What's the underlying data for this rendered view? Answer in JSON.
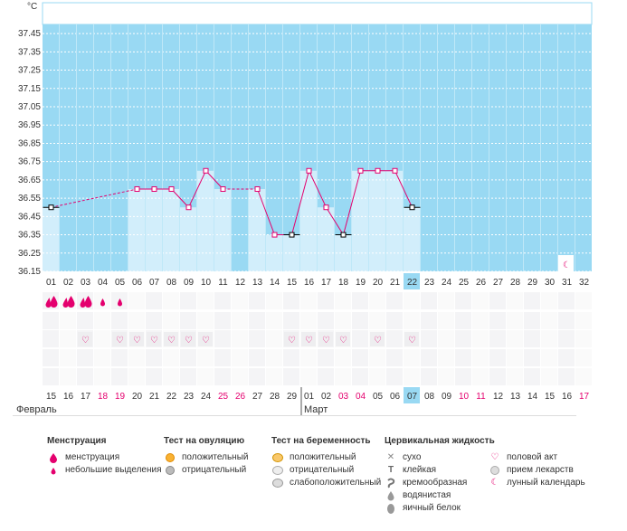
{
  "unit_label": "°C",
  "y_ticks": [
    "37.45",
    "37.35",
    "37.25",
    "37.15",
    "37.05",
    "36.95",
    "36.85",
    "36.75",
    "36.65",
    "36.55",
    "36.45",
    "36.35",
    "36.25",
    "36.15"
  ],
  "cycle_days": [
    "01",
    "02",
    "03",
    "04",
    "05",
    "06",
    "07",
    "08",
    "09",
    "10",
    "11",
    "12",
    "13",
    "14",
    "15",
    "16",
    "17",
    "18",
    "19",
    "20",
    "21",
    "22",
    "23",
    "24",
    "25",
    "26",
    "27",
    "28",
    "29",
    "30",
    "31",
    "32"
  ],
  "dates": [
    "15",
    "16",
    "17",
    "18",
    "19",
    "20",
    "21",
    "22",
    "23",
    "24",
    "25",
    "26",
    "27",
    "28",
    "29",
    "01",
    "02",
    "03",
    "04",
    "05",
    "06",
    "07",
    "08",
    "09",
    "10",
    "11",
    "12",
    "13",
    "14",
    "15",
    "16",
    "17"
  ],
  "red_dates": [
    3,
    4,
    10,
    11,
    17,
    18,
    24,
    25,
    31
  ],
  "highlight_index": 21,
  "months": {
    "feb": "Февраль",
    "mar": "Март"
  },
  "menstruation_rows": {
    "heavy": [
      0,
      1,
      2
    ],
    "light": [
      3,
      4
    ]
  },
  "intercourse_days": [
    2,
    4,
    5,
    6,
    7,
    8,
    9,
    14,
    15,
    16,
    17,
    19,
    21
  ],
  "moon_day": 30,
  "chart_data": {
    "type": "line",
    "x": [
      "01",
      "02",
      "03",
      "04",
      "05",
      "06",
      "07",
      "08",
      "09",
      "10",
      "11",
      "12",
      "13",
      "14",
      "15",
      "16",
      "17",
      "18",
      "19",
      "20",
      "21",
      "22"
    ],
    "series": [
      {
        "values": [
          36.5,
          null,
          null,
          null,
          null,
          36.6,
          36.6,
          36.6,
          36.5,
          36.7,
          36.6,
          null,
          36.6,
          36.35,
          36.35,
          36.7,
          36.5,
          36.35,
          36.7,
          36.7,
          36.7,
          36.5
        ]
      }
    ],
    "ylim": [
      36.15,
      37.5
    ],
    "ylabel": "°C",
    "grid": true
  },
  "legend": {
    "menstruation": {
      "title": "Менструация",
      "items": [
        "менструация",
        "небольшие выделения"
      ]
    },
    "ovulation": {
      "title": "Тест на овуляцию",
      "items": [
        "положительный",
        "отрицательный"
      ]
    },
    "pregnancy": {
      "title": "Тест на беременность",
      "items": [
        "положительный",
        "отрицательный",
        "слабоположительный"
      ]
    },
    "cervical": {
      "title": "Цервикальная жидкость",
      "items": [
        "сухо",
        "клейкая",
        "кремообразная",
        "водянистая",
        "яичный белок"
      ]
    },
    "other": {
      "items": [
        "половой акт",
        "прием лекарств",
        "лунный календарь"
      ]
    }
  },
  "colors": {
    "sky": "#99d9f3",
    "bar": "#d2eefb",
    "line": "#e4006e",
    "highlight": "#99d9f3"
  }
}
